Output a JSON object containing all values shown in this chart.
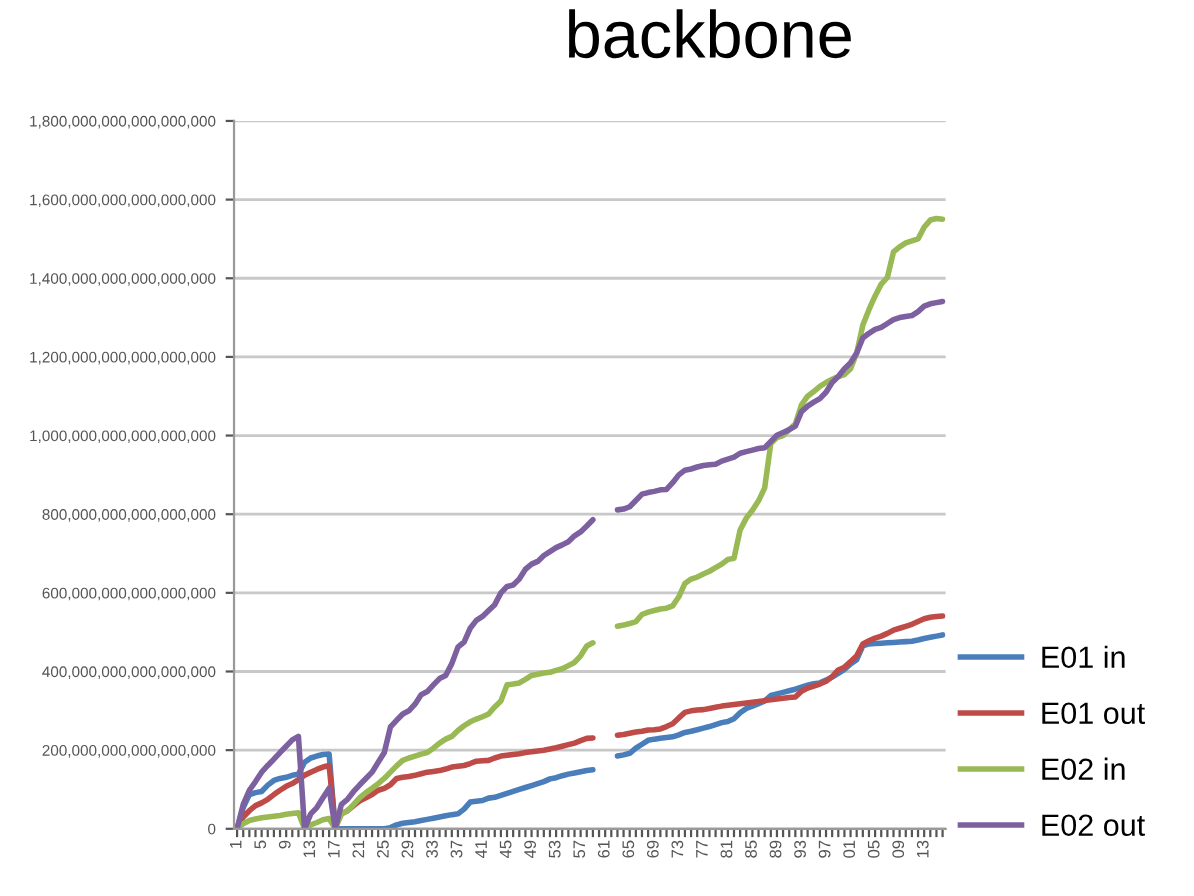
{
  "chart_data": {
    "type": "line",
    "title": "backbone",
    "categories": [
      "1",
      null,
      null,
      null,
      "5",
      null,
      null,
      null,
      "9",
      null,
      null,
      null,
      "13",
      null,
      null,
      null,
      "17",
      null,
      null,
      null,
      "21",
      null,
      null,
      null,
      "25",
      null,
      null,
      null,
      "29",
      null,
      null,
      null,
      "33",
      null,
      null,
      null,
      "37",
      null,
      null,
      null,
      "41",
      null,
      null,
      null,
      "45",
      null,
      null,
      null,
      "49",
      null,
      null,
      null,
      "53",
      null,
      null,
      null,
      "57",
      null,
      null,
      null,
      "61",
      null,
      null,
      null,
      "65",
      null,
      null,
      null,
      "69",
      null,
      null,
      null,
      "73",
      null,
      null,
      null,
      "77",
      null,
      null,
      null,
      "81",
      null,
      null,
      null,
      "85",
      null,
      null,
      null,
      "89",
      null,
      null,
      null,
      "93",
      null,
      null,
      null,
      "97",
      null,
      null,
      null,
      "01",
      null,
      null,
      null,
      "05",
      null,
      null,
      null,
      "09",
      null,
      null,
      null,
      "13",
      null,
      null,
      null
    ],
    "ylim": [
      0,
      1.8e+18
    ],
    "yticks": [
      {
        "value": 0,
        "label": "0"
      },
      {
        "value": 2e+17,
        "label": "200,000,000,000,000,000"
      },
      {
        "value": 4e+17,
        "label": "400,000,000,000,000,000"
      },
      {
        "value": 6e+17,
        "label": "600,000,000,000,000,000"
      },
      {
        "value": 8e+17,
        "label": "800,000,000,000,000,000"
      },
      {
        "value": 1e+18,
        "label": "1,000,000,000,000,000,000"
      },
      {
        "value": 1.2e+18,
        "label": "1,200,000,000,000,000,000"
      },
      {
        "value": 1.4e+18,
        "label": "1,400,000,000,000,000,000"
      },
      {
        "value": 1.6e+18,
        "label": "1,600,000,000,000,000,000"
      },
      {
        "value": 1.8e+18,
        "label": "1,800,000,000,000,000,000"
      }
    ],
    "grid": "y",
    "legend": "right",
    "series": [
      {
        "name": "E01 in",
        "color": "#4a7ebb",
        "values": [
          0,
          5.4e+16,
          8.7e+16,
          9.2e+16,
          9.5e+16,
          1.11e+17,
          1.23e+17,
          1.28e+17,
          1.31e+17,
          1.36e+17,
          1.39e+17,
          1.69e+17,
          1.8e+17,
          1.85e+17,
          1.89e+17,
          1.9e+17,
          0,
          0,
          0,
          0,
          0,
          0,
          0,
          0,
          0,
          3000000000000000.0,
          1e+16,
          1.4e+16,
          1.6e+16,
          1.8e+16,
          2.1e+16,
          2.4e+16,
          2.7e+16,
          3e+16,
          3.3e+16,
          3.6e+16,
          3.8e+16,
          5e+16,
          6.8e+16,
          7e+16,
          7.2e+16,
          7.8e+16,
          8e+16,
          8.5e+16,
          9e+16,
          9.5e+16,
          1e+17,
          1.05e+17,
          1.1e+17,
          1.15e+17,
          1.2e+17,
          1.27e+17,
          1.3e+17,
          1.35e+17,
          1.39e+17,
          1.42e+17,
          1.45e+17,
          1.48e+17,
          1.5e+17,
          null,
          null,
          null,
          1.85e+17,
          1.88e+17,
          1.92e+17,
          2.05e+17,
          2.15e+17,
          2.25e+17,
          2.28e+17,
          2.3e+17,
          2.32e+17,
          2.34e+17,
          2.39e+17,
          2.45e+17,
          2.48e+17,
          2.52e+17,
          2.56e+17,
          2.6e+17,
          2.65e+17,
          2.7e+17,
          2.73e+17,
          2.8e+17,
          2.95e+17,
          3.06e+17,
          3.12e+17,
          3.18e+17,
          3.25e+17,
          3.39e+17,
          3.43e+17,
          3.47e+17,
          3.51e+17,
          3.55e+17,
          3.6e+17,
          3.65e+17,
          3.69e+17,
          3.71e+17,
          3.78e+17,
          3.86e+17,
          3.95e+17,
          4.05e+17,
          4.19e+17,
          4.3e+17,
          4.65e+17,
          4.7e+17,
          4.71e+17,
          4.72e+17,
          4.73e+17,
          4.74e+17,
          4.75e+17,
          4.76e+17,
          4.77e+17,
          4.8e+17,
          4.84e+17,
          4.87e+17,
          4.9e+17,
          4.93e+17
        ]
      },
      {
        "name": "E01 out",
        "color": "#be4b48",
        "values": [
          0,
          3e+16,
          4.6e+16,
          5.9e+16,
          6.6e+16,
          7.5e+16,
          8.7e+16,
          9.8e+16,
          1.08e+17,
          1.15e+17,
          1.25e+17,
          1.36e+17,
          1.44e+17,
          1.51e+17,
          1.57e+17,
          1.61e+17,
          5000000000000000.0,
          3.8e+16,
          4.6e+16,
          5.9e+16,
          7.1e+16,
          7.9e+16,
          8.7e+16,
          9.8e+16,
          1.03e+17,
          1.12e+17,
          1.28e+17,
          1.31e+17,
          1.33e+17,
          1.36e+17,
          1.4e+17,
          1.44e+17,
          1.46e+17,
          1.48e+17,
          1.52e+17,
          1.57e+17,
          1.59e+17,
          1.61e+17,
          1.66e+17,
          1.72e+17,
          1.73e+17,
          1.74e+17,
          1.8e+17,
          1.85e+17,
          1.87e+17,
          1.89e+17,
          1.91e+17,
          1.94e+17,
          1.96e+17,
          1.98e+17,
          2e+17,
          2.03e+17,
          2.06e+17,
          2.1e+17,
          2.14e+17,
          2.18e+17,
          2.24e+17,
          2.3e+17,
          2.31e+17,
          null,
          null,
          null,
          2.38e+17,
          2.4e+17,
          2.43e+17,
          2.46e+17,
          2.48e+17,
          2.51e+17,
          2.52e+17,
          2.54e+17,
          2.6e+17,
          2.67e+17,
          2.82e+17,
          2.96e+17,
          3e+17,
          3.02e+17,
          3.03e+17,
          3.06e+17,
          3.09e+17,
          3.12e+17,
          3.14e+17,
          3.16e+17,
          3.18e+17,
          3.2e+17,
          3.22e+17,
          3.24e+17,
          3.26e+17,
          3.28e+17,
          3.3e+17,
          3.32e+17,
          3.34e+17,
          3.35e+17,
          3.5e+17,
          3.58e+17,
          3.63e+17,
          3.68e+17,
          3.75e+17,
          3.87e+17,
          4.04e+17,
          4.11e+17,
          4.25e+17,
          4.4e+17,
          4.7e+17,
          4.78e+17,
          4.85e+17,
          4.9e+17,
          4.97e+17,
          5.05e+17,
          5.1e+17,
          5.15e+17,
          5.2e+17,
          5.27e+17,
          5.34e+17,
          5.38e+17,
          5.4e+17,
          5.41e+17
        ]
      },
      {
        "name": "E02 in",
        "color": "#98b954",
        "values": [
          0,
          1.3e+16,
          2.1e+16,
          2.5e+16,
          2.8e+16,
          3e+16,
          3.2e+16,
          3.4e+16,
          3.7e+16,
          3.9e+16,
          4.1e+16,
          0,
          1e+16,
          1.6e+16,
          2.3e+16,
          2.6e+16,
          0,
          3.8e+16,
          4.6e+16,
          6.2e+16,
          7.9e+16,
          9.2e+16,
          1.03e+17,
          1.15e+17,
          1.28e+17,
          1.44e+17,
          1.6e+17,
          1.74e+17,
          1.8e+17,
          1.85e+17,
          1.9e+17,
          1.94e+17,
          2.05e+17,
          2.18e+17,
          2.28e+17,
          2.35e+17,
          2.5e+17,
          2.62e+17,
          2.72e+17,
          2.79e+17,
          2.85e+17,
          2.92e+17,
          3.1e+17,
          3.25e+17,
          3.66e+17,
          3.68e+17,
          3.71e+17,
          3.8e+17,
          3.9e+17,
          3.93e+17,
          3.96e+17,
          3.98e+17,
          4.03e+17,
          4.07e+17,
          4.15e+17,
          4.23e+17,
          4.4e+17,
          4.65e+17,
          4.73e+17,
          null,
          null,
          null,
          5.15e+17,
          5.18e+17,
          5.22e+17,
          5.27e+17,
          5.45e+17,
          5.51e+17,
          5.55e+17,
          5.59e+17,
          5.61e+17,
          5.67e+17,
          5.9e+17,
          6.24e+17,
          6.35e+17,
          6.4e+17,
          6.48e+17,
          6.55e+17,
          6.64e+17,
          6.73e+17,
          6.85e+17,
          6.88e+17,
          7.6e+17,
          7.9e+17,
          8.1e+17,
          8.34e+17,
          8.67e+17,
          9.8e+17,
          9.95e+17,
          1e+18,
          1.015e+18,
          1.03e+18,
          1.078e+18,
          1.1e+18,
          1.112e+18,
          1.125e+18,
          1.135e+18,
          1.143e+18,
          1.15e+18,
          1.155e+18,
          1.17e+18,
          1.21e+18,
          1.281e+18,
          1.32e+18,
          1.355e+18,
          1.385e+18,
          1.402e+18,
          1.467e+18,
          1.48e+18,
          1.49e+18,
          1.495e+18,
          1.5e+18,
          1.53e+18,
          1.548e+18,
          1.552e+18,
          1.55e+18
        ]
      },
      {
        "name": "E02 out",
        "color": "#7d60a0",
        "values": [
          0,
          6.2e+16,
          9.8e+16,
          1.2e+17,
          1.44e+17,
          1.61e+17,
          1.77e+17,
          1.94e+17,
          2.1e+17,
          2.26e+17,
          2.35e+17,
          0,
          3.8e+16,
          5.4e+16,
          7.9e+16,
          1.03e+17,
          0,
          6.2e+16,
          7.5e+16,
          9.5e+16,
          1.12e+17,
          1.28e+17,
          1.44e+17,
          1.69e+17,
          1.94e+17,
          2.59e+17,
          2.76e+17,
          2.92e+17,
          3e+17,
          3.17e+17,
          3.41e+17,
          3.49e+17,
          3.66e+17,
          3.82e+17,
          3.9e+17,
          4.2e+17,
          4.62e+17,
          4.75e+17,
          5.1e+17,
          5.3e+17,
          5.4e+17,
          5.55e+17,
          5.7e+17,
          6e+17,
          6.16e+17,
          6.2e+17,
          6.35e+17,
          6.6e+17,
          6.73e+17,
          6.8e+17,
          6.95e+17,
          7.05e+17,
          7.15e+17,
          7.22e+17,
          7.3e+17,
          7.45e+17,
          7.55e+17,
          7.7e+17,
          7.86e+17,
          null,
          null,
          null,
          8.11e+17,
          8.13e+17,
          8.19e+17,
          8.35e+17,
          8.51e+17,
          8.55e+17,
          8.58e+17,
          8.62e+17,
          8.63e+17,
          8.8e+17,
          9e+17,
          9.12e+17,
          9.15e+17,
          9.2e+17,
          9.24e+17,
          9.26e+17,
          9.27e+17,
          9.35e+17,
          9.4e+17,
          9.45e+17,
          9.55e+17,
          9.59e+17,
          9.63e+17,
          9.67e+17,
          9.69e+17,
          9.85e+17,
          1.001e+18,
          1.008e+18,
          1.015e+18,
          1.024e+18,
          1.061e+18,
          1.075e+18,
          1.085e+18,
          1.094e+18,
          1.11e+18,
          1.135e+18,
          1.15e+18,
          1.17e+18,
          1.185e+18,
          1.21e+18,
          1.248e+18,
          1.26e+18,
          1.27e+18,
          1.275e+18,
          1.285e+18,
          1.295e+18,
          1.3e+18,
          1.303e+18,
          1.305e+18,
          1.315e+18,
          1.329e+18,
          1.335e+18,
          1.338e+18,
          1.341e+18
        ]
      }
    ]
  }
}
